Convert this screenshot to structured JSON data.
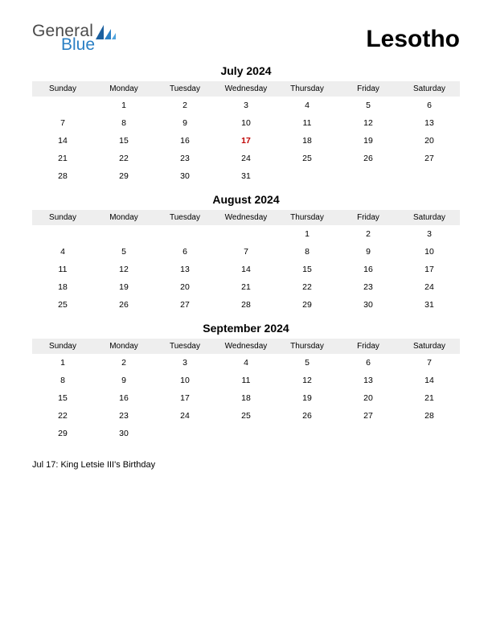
{
  "logo": {
    "text1": "General",
    "text2": "Blue"
  },
  "country": "Lesotho",
  "dayHeaders": [
    "Sunday",
    "Monday",
    "Tuesday",
    "Wednesday",
    "Thursday",
    "Friday",
    "Saturday"
  ],
  "months": [
    {
      "title": "July 2024",
      "startCol": 1,
      "days": 31,
      "holidays": [
        17
      ]
    },
    {
      "title": "August 2024",
      "startCol": 4,
      "days": 31,
      "holidays": []
    },
    {
      "title": "September 2024",
      "startCol": 0,
      "days": 30,
      "holidays": []
    }
  ],
  "holidayNote": "Jul 17: King Letsie III's Birthday",
  "colors": {
    "headerBg": "#eeeeee",
    "holidayText": "#c00000",
    "logoGray": "#4a4a4a",
    "logoBlue": "#2a7fc4",
    "text": "#000000",
    "background": "#ffffff"
  },
  "fonts": {
    "country_pt": 30,
    "monthTitle_pt": 14,
    "dayHeader_pt": 10,
    "dayCell_pt": 10.5,
    "note_pt": 11
  }
}
